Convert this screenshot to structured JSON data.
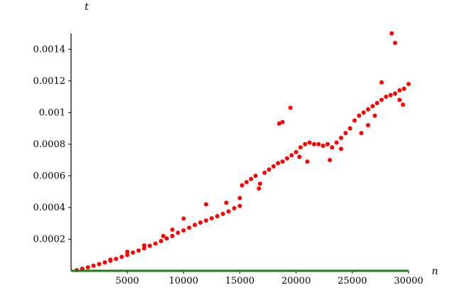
{
  "chart_data": {
    "type": "scatter",
    "title": "",
    "xlabel": "n",
    "ylabel": "t",
    "xlim": [
      0,
      30000
    ],
    "ylim": [
      0,
      0.0015
    ],
    "grid": false,
    "x_ticks": [
      5000,
      10000,
      15000,
      20000,
      25000,
      30000
    ],
    "x_tick_labels": [
      "5000",
      "10000",
      "15000",
      "20000",
      "25000",
      "30000"
    ],
    "y_ticks": [
      0.0002,
      0.0004,
      0.0006,
      0.0008,
      0.001,
      0.0012,
      0.0014
    ],
    "y_tick_labels": [
      "0.0002",
      "0.0004",
      "0.0006",
      "0.0008",
      "0.001",
      "0.0012",
      "0.0014"
    ],
    "colors": {
      "points": "#ff0000",
      "baseline": "#1a7f1a",
      "axis": "#000000"
    },
    "series": [
      {
        "color": "#ff0000",
        "points": [
          [
            500,
            4e-06
          ],
          [
            1000,
            1.3e-05
          ],
          [
            1500,
            2.2e-05
          ],
          [
            2000,
            3.2e-05
          ],
          [
            2500,
            4.2e-05
          ],
          [
            3000,
            5.3e-05
          ],
          [
            3500,
            6.4e-05
          ],
          [
            4000,
            7.5e-05
          ],
          [
            4500,
            8.8e-05
          ],
          [
            5000,
            0.0001
          ],
          [
            5500,
            0.000115
          ],
          [
            6000,
            0.000128
          ],
          [
            6500,
            0.000142
          ],
          [
            7000,
            0.000158
          ],
          [
            7500,
            0.000172
          ],
          [
            8000,
            0.000188
          ],
          [
            8500,
            0.000205
          ],
          [
            9000,
            0.00022
          ],
          [
            9500,
            0.00024
          ],
          [
            10000,
            0.000255
          ],
          [
            10500,
            0.000272
          ],
          [
            11000,
            0.00029
          ],
          [
            11500,
            0.000305
          ],
          [
            12000,
            0.000318
          ],
          [
            12500,
            0.000332
          ],
          [
            13000,
            0.000345
          ],
          [
            13500,
            0.00036
          ],
          [
            14000,
            0.000375
          ],
          [
            14500,
            0.000395
          ],
          [
            15000,
            0.00041
          ],
          [
            15200,
            0.00054
          ],
          [
            15600,
            0.00056
          ],
          [
            16000,
            0.00058
          ],
          [
            16400,
            0.0006
          ],
          [
            16800,
            0.00055
          ],
          [
            17200,
            0.00062
          ],
          [
            17600,
            0.00064
          ],
          [
            18000,
            0.00066
          ],
          [
            18400,
            0.00068
          ],
          [
            18800,
            0.00069
          ],
          [
            19200,
            0.00071
          ],
          [
            19600,
            0.00073
          ],
          [
            20000,
            0.00075
          ],
          [
            20400,
            0.00078
          ],
          [
            20800,
            0.0008
          ],
          [
            21200,
            0.00081
          ],
          [
            21600,
            0.0008
          ],
          [
            22000,
            0.0008
          ],
          [
            22400,
            0.00079
          ],
          [
            22800,
            0.0008
          ],
          [
            23200,
            0.00078
          ],
          [
            23600,
            0.00081
          ],
          [
            24000,
            0.00084
          ],
          [
            24400,
            0.00087
          ],
          [
            24800,
            0.0009
          ],
          [
            25200,
            0.00095
          ],
          [
            25600,
            0.00098
          ],
          [
            26000,
            0.001
          ],
          [
            26400,
            0.00102
          ],
          [
            26800,
            0.00104
          ],
          [
            27200,
            0.00106
          ],
          [
            27600,
            0.00108
          ],
          [
            28000,
            0.0011
          ],
          [
            28400,
            0.00111
          ],
          [
            28800,
            0.00112
          ],
          [
            29200,
            0.00114
          ],
          [
            29600,
            0.00115
          ],
          [
            30000,
            0.00118
          ],
          [
            18500,
            0.00093
          ],
          [
            18800,
            0.00094
          ],
          [
            19500,
            0.00103
          ],
          [
            12000,
            0.00042
          ],
          [
            13800,
            0.00043
          ],
          [
            15000,
            0.00046
          ],
          [
            16700,
            0.00052
          ],
          [
            20300,
            0.00072
          ],
          [
            21000,
            0.00069
          ],
          [
            23000,
            0.0007
          ],
          [
            24000,
            0.00077
          ],
          [
            25800,
            0.00087
          ],
          [
            26400,
            0.00092
          ],
          [
            27000,
            0.00098
          ],
          [
            27600,
            0.00119
          ],
          [
            28500,
            0.0015
          ],
          [
            28800,
            0.00144
          ],
          [
            29200,
            0.00108
          ],
          [
            29500,
            0.00105
          ],
          [
            10000,
            0.00033
          ],
          [
            9000,
            0.00026
          ],
          [
            8200,
            0.00022
          ],
          [
            6500,
            0.00016
          ],
          [
            5000,
            0.00012
          ],
          [
            3500,
            7e-05
          ]
        ]
      }
    ]
  }
}
